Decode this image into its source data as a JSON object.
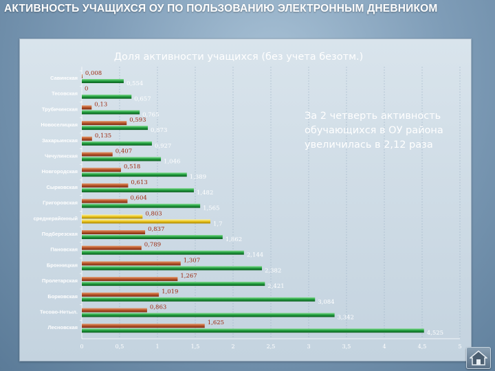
{
  "page": {
    "title": "АКТИВНОСТЬ УЧАЩИХСЯ ОУ ПО ПОЛЬЗОВАНИЮ ЭЛЕКТРОННЫМ ДНЕВНИКОМ",
    "home_icon": "home-icon"
  },
  "chart_data": {
    "type": "bar",
    "orientation": "horizontal",
    "title": "Доля активности учащихся (без учета безотм.)",
    "annotation": [
      "За 2 четверть активность",
      "обучающихся в ОУ района",
      "увеличилась в 2,12 раза"
    ],
    "categories": [
      "Савинская",
      "Тесовская",
      "Трубичинская",
      "Новоселицкая",
      "Захарьинская",
      "Чечулинская",
      "Новгородская",
      "Сырковская",
      "Григоровская",
      "среднерайонный",
      "Подберезская",
      "Пановская",
      "Бронницкая",
      "Пролетарская",
      "Борковская",
      "Тесово-Нетыл.",
      "Лесновская"
    ],
    "series": [
      {
        "values": [
          0.008,
          0,
          0.13,
          0.593,
          0.135,
          0.407,
          0.518,
          0.613,
          0.604,
          0.803,
          0.837,
          0.789,
          1.307,
          1.267,
          1.019,
          0.863,
          1.625
        ]
      },
      {
        "values": [
          0.554,
          0.657,
          0.765,
          0.873,
          0.927,
          1.046,
          1.389,
          1.482,
          1.565,
          1.7,
          1.862,
          2.144,
          2.382,
          2.421,
          3.084,
          3.342,
          4.525
        ]
      }
    ],
    "value_labels": [
      [
        "0,008",
        "0",
        "0,13",
        "0,593",
        "0,135",
        "0,407",
        "0,518",
        "0,613",
        "0,604",
        "0,803",
        "0,837",
        "0,789",
        "1,307",
        "1,267",
        "1,019",
        "0,863",
        "1,625"
      ],
      [
        "0,554",
        "0,657",
        "0,765",
        "0,873",
        "0,927",
        "1,046",
        "1,389",
        "1,482",
        "1,565",
        "1,7",
        "1,862",
        "2,144",
        "2,382",
        "2,421",
        "3,084",
        "3,342",
        "4,525"
      ]
    ],
    "highlight_category": "среднерайонный",
    "xlim": [
      0,
      5
    ],
    "xticks": [
      0,
      0.5,
      1,
      1.5,
      2,
      2.5,
      3,
      3.5,
      4,
      4.5,
      5
    ],
    "xtick_labels": [
      "0",
      "0,5",
      "1",
      "1,5",
      "2",
      "2,5",
      "3",
      "3,5",
      "4",
      "4,5",
      "5"
    ],
    "grid": true,
    "legend": "none",
    "colors": {
      "series1": "#b5532a",
      "series2": "#1f9a3c",
      "highlight": "#e8c21a",
      "series1_label": "#9c2a10",
      "series2_label": "#ffffff",
      "grid": "#9fb3c6"
    }
  }
}
